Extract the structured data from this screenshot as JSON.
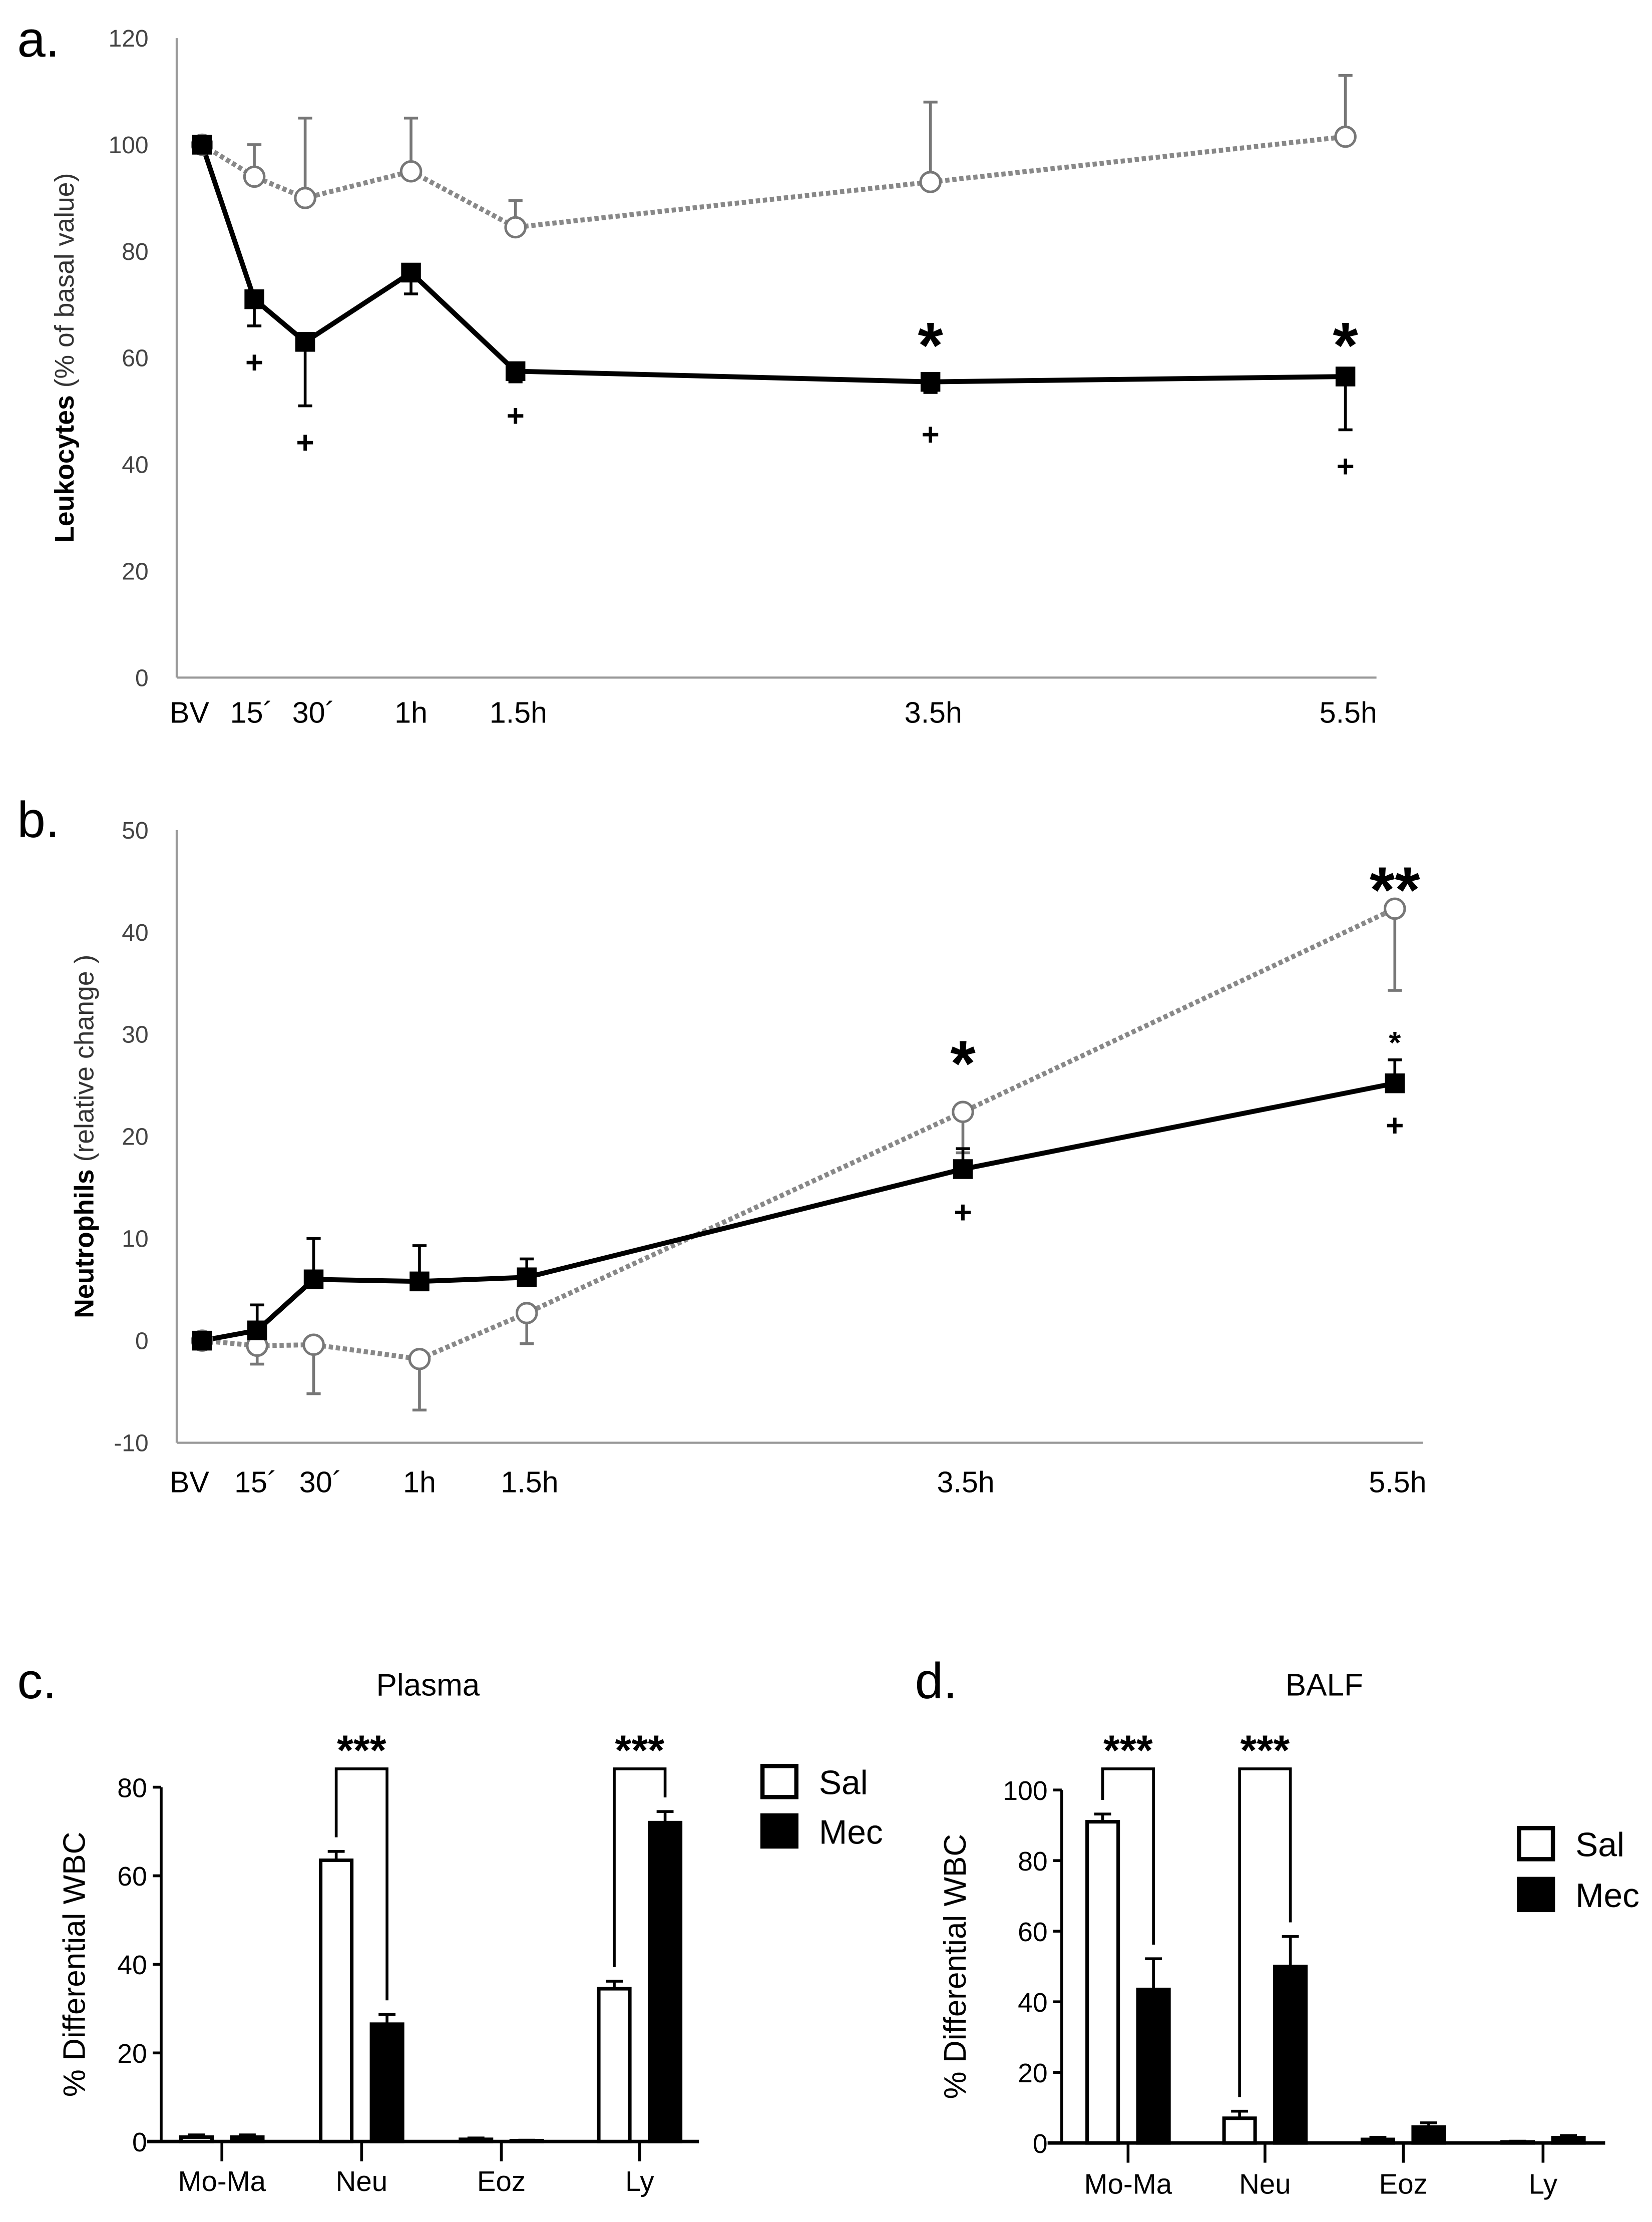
{
  "chart_data": [
    {
      "type": "line",
      "panel_label": "a.",
      "ylabel_bold": "Leukocytes",
      "ylabel_rest": " (% of basal value)",
      "categories": [
        "BV",
        "15´",
        "30´",
        "1h",
        "1.5h",
        "3.5h",
        "5.5h"
      ],
      "x_hours": [
        0,
        0.25,
        0.5,
        1,
        1.5,
        3.5,
        5.5
      ],
      "ylim": [
        0,
        120
      ],
      "yticks": [
        0,
        20,
        40,
        60,
        80,
        100,
        120
      ],
      "series": [
        {
          "name": "Sal",
          "style": "dotted-open-circle",
          "color": "#888888",
          "values": [
            100,
            94,
            90,
            95,
            84.5,
            93,
            101.5
          ],
          "err_up": [
            0,
            6,
            15,
            10,
            5,
            15,
            11.5
          ],
          "err_down": [
            0,
            0,
            0,
            0,
            0,
            0,
            0
          ]
        },
        {
          "name": "Mec",
          "style": "solid-filled-square",
          "color": "#000000",
          "values": [
            100,
            71,
            63,
            76,
            57.5,
            55.5,
            56.5
          ],
          "err_up": [
            0,
            0,
            0,
            0,
            0,
            0,
            0
          ],
          "err_down": [
            0,
            5,
            12,
            4,
            2,
            2,
            10
          ]
        }
      ],
      "annotations": [
        {
          "text": "+",
          "x_index": 1,
          "y": 59
        },
        {
          "text": "+",
          "x_index": 2,
          "y": 44
        },
        {
          "text": "+",
          "x_index": 4,
          "y": 49
        },
        {
          "text": "+",
          "x_index": 5,
          "y": 45.5
        },
        {
          "text": "+",
          "x_index": 6,
          "y": 39.5
        },
        {
          "text": "*",
          "x_index": 5,
          "y": 64,
          "big": true
        },
        {
          "text": "*",
          "x_index": 6,
          "y": 64,
          "big": true
        }
      ]
    },
    {
      "type": "line",
      "panel_label": "b.",
      "ylabel_bold": "Neutrophils",
      "ylabel_rest": " (relative change )",
      "categories": [
        "BV",
        "15´",
        "30´",
        "1h",
        "1.5h",
        "3.5h",
        "5.5h"
      ],
      "x_hours": [
        0,
        0.25,
        0.5,
        1,
        1.5,
        3.5,
        5.5
      ],
      "ylim": [
        -10,
        50
      ],
      "yticks": [
        -10,
        0,
        10,
        20,
        30,
        40,
        50
      ],
      "series": [
        {
          "name": "Sal",
          "style": "dotted-open-circle",
          "color": "#888888",
          "values": [
            0,
            -0.5,
            -0.4,
            -1.8,
            2.7,
            22.4,
            42.3
          ],
          "err_up": [
            0,
            0,
            0,
            0,
            0,
            0,
            0
          ],
          "err_down": [
            0,
            1.8,
            4.8,
            5,
            3,
            4,
            8
          ]
        },
        {
          "name": "Mec",
          "style": "solid-filled-square",
          "color": "#000000",
          "values": [
            0,
            1,
            6,
            5.8,
            6.2,
            16.8,
            25.2
          ],
          "err_up": [
            0,
            2.5,
            4,
            3.5,
            1.8,
            2,
            2.3
          ],
          "err_down": [
            0,
            0,
            0,
            0,
            0,
            0,
            0
          ]
        }
      ],
      "annotations": [
        {
          "text": "+",
          "x_index": 5,
          "y": 12.5
        },
        {
          "text": "+",
          "x_index": 6,
          "y": 21
        },
        {
          "text": "*",
          "x_index": 5,
          "y": 28,
          "big": true
        },
        {
          "text": "**",
          "x_index": 6,
          "y": 45,
          "big": true
        },
        {
          "text": "*",
          "x_index": 6,
          "y": 29.5,
          "big": false
        }
      ]
    },
    {
      "type": "bar",
      "panel_label": "c.",
      "title": "Plasma",
      "ylabel": "% Differential WBC",
      "categories": [
        "Mo-Ma",
        "Neu",
        "Eoz",
        "Ly"
      ],
      "ylim": [
        0,
        80
      ],
      "yticks": [
        0,
        20,
        40,
        60,
        80
      ],
      "series": [
        {
          "name": "Sal",
          "fill": "#ffffff",
          "values": [
            1,
            63.5,
            0.5,
            34.5
          ],
          "err": [
            0.5,
            2,
            0.3,
            1.7
          ]
        },
        {
          "name": "Mec",
          "fill": "#000000",
          "values": [
            1,
            26.5,
            0.2,
            72
          ],
          "err": [
            0.5,
            2.2,
            0.1,
            2.5
          ]
        }
      ],
      "significance": [
        {
          "category_index": 1,
          "label": "***"
        },
        {
          "category_index": 3,
          "label": "***"
        }
      ]
    },
    {
      "type": "bar",
      "panel_label": "d.",
      "title": "BALF",
      "ylabel": "% Differential WBC",
      "categories": [
        "Mo-Ma",
        "Neu",
        "Eoz",
        "Ly"
      ],
      "ylim": [
        0,
        100
      ],
      "yticks": [
        0,
        20,
        40,
        60,
        80,
        100
      ],
      "series": [
        {
          "name": "Sal",
          "fill": "#ffffff",
          "values": [
            91,
            7,
            1,
            0.3
          ],
          "err": [
            2.2,
            2,
            0.6,
            0.2
          ]
        },
        {
          "name": "Mec",
          "fill": "#000000",
          "values": [
            43.5,
            50,
            4.5,
            1.5
          ],
          "err": [
            8.7,
            8.5,
            1.2,
            0.6
          ]
        }
      ],
      "significance": [
        {
          "category_index": 0,
          "label": "***"
        },
        {
          "category_index": 1,
          "label": "***"
        }
      ]
    }
  ]
}
